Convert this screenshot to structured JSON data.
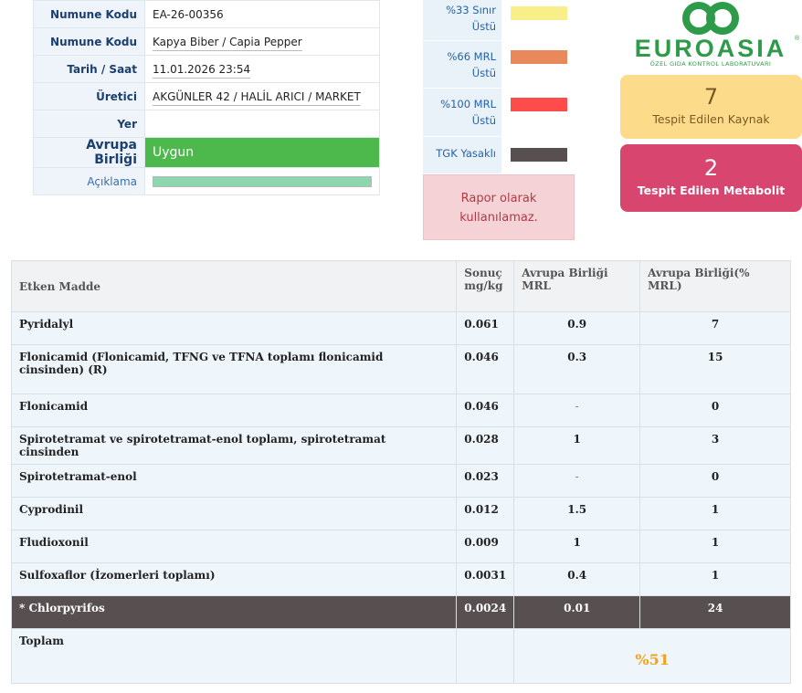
{
  "info": {
    "rows": [
      {
        "label": "Numune Kodu",
        "value": "EA-26-00356"
      },
      {
        "label": "Numune Kodu",
        "value": "Kapya Biber / Capia Pepper"
      },
      {
        "label": "Tarih / Saat",
        "value": "11.01.2026 23:54"
      },
      {
        "label": "Üretici",
        "value": "AKGÜNLER 42 / HALİL ARICI / MARKET"
      },
      {
        "label": "Yer",
        "value": ""
      }
    ],
    "eu_label": "Avrupa Birliği",
    "eu_status": "Uygun",
    "eu_status_color": "#4db84c",
    "description_label": "Açıklama",
    "description_bar_color": "#8ed6b0"
  },
  "legend": {
    "items": [
      {
        "label": "%33 Sınır Üstü",
        "color": "#f9ef88"
      },
      {
        "label": "%66 MRL Üstü",
        "color": "#e9885a"
      },
      {
        "label": "%100 MRL Üstü",
        "color": "#fd4c4c"
      },
      {
        "label": "TGK Yasaklı",
        "color": "#585050"
      }
    ],
    "warning": "Rapor olarak kullanılamaz."
  },
  "logo": {
    "text": "EUROASIA",
    "registered": "®",
    "subtitle": "ÖZEL GIDA KONTROL LABORATUVARI",
    "color": "#2e9b4a"
  },
  "stats": {
    "sources": {
      "value": "7",
      "label": "Tespit Edilen Kaynak"
    },
    "metabolites": {
      "value": "2",
      "label": "Tespit Edilen Metabolit"
    }
  },
  "results": {
    "headers": [
      "Etken Madde",
      "Sonuç mg/kg",
      "Avrupa Birliği MRL",
      "Avrupa Birliği(% MRL)"
    ],
    "rows": [
      {
        "name": "Pyridalyl",
        "result": "0.061",
        "mrl": "0.9",
        "pct": "7"
      },
      {
        "name": "Flonicamid (Flonicamid, TFNG ve TFNA toplamı flonicamid cinsinden) (R)",
        "result": "0.046",
        "mrl": "0.3",
        "pct": "15"
      },
      {
        "name": "Flonicamid",
        "result": "0.046",
        "mrl": "-",
        "pct": "0"
      },
      {
        "name": "Spirotetramat ve spirotetramat-enol toplamı, spirotetramat cinsinden",
        "result": "0.028",
        "mrl": "1",
        "pct": "3"
      },
      {
        "name": "Spirotetramat-enol",
        "result": "0.023",
        "mrl": "-",
        "pct": "0"
      },
      {
        "name": "Cyprodinil",
        "result": "0.012",
        "mrl": "1.5",
        "pct": "1"
      },
      {
        "name": "Fludioxonil",
        "result": "0.009",
        "mrl": "1",
        "pct": "1"
      },
      {
        "name": "Sulfoxaflor (İzomerleri toplamı)",
        "result": "0.0031",
        "mrl": "0.4",
        "pct": "1"
      },
      {
        "name": "* Chlorpyrifos",
        "result": "0.0024",
        "mrl": "0.01",
        "pct": "24"
      }
    ],
    "total_label": "Toplam",
    "total_value": "%51",
    "total_color": "#f2a21d"
  }
}
